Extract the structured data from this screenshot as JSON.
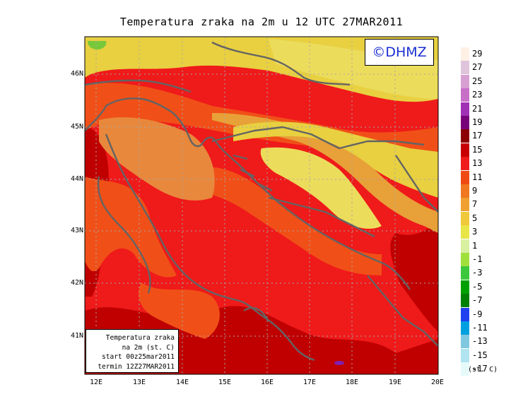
{
  "title": "Temperatura zraka na 2m u 12 UTC 27MAR2011",
  "brand": "©DHMZ",
  "infobox": {
    "line1": "Temperatura zraka",
    "line2": "na 2m (st. C)",
    "line3": "start 00z25mar2011",
    "line4": "termin 12Z27MAR2011"
  },
  "latitude_labels": [
    "46N",
    "45N",
    "44N",
    "43N",
    "42N",
    "41N"
  ],
  "longitude_labels": [
    "12E",
    "13E",
    "14E",
    "15E",
    "16E",
    "17E",
    "18E",
    "19E",
    "20E"
  ],
  "colorbar": {
    "units": "(st. C)",
    "labels": [
      "29",
      "27",
      "25",
      "23",
      "21",
      "19",
      "17",
      "15",
      "13",
      "11",
      "9",
      "7",
      "5",
      "3",
      "1",
      "-1",
      "-3",
      "-5",
      "-7",
      "-9",
      "-11",
      "-13",
      "-15",
      "-17"
    ],
    "colors": [
      "#fff0e6",
      "#e0c4dc",
      "#d8a0d2",
      "#c870c8",
      "#a030b4",
      "#780078",
      "#8c0000",
      "#c80000",
      "#f01c1c",
      "#f04a14",
      "#f07820",
      "#f0a030",
      "#f0c83c",
      "#e8e646",
      "#d8f0a0",
      "#a0e03c",
      "#3cc83c",
      "#00a000",
      "#008000",
      "#2040f0",
      "#00a0e0",
      "#80c8e0",
      "#b0e4f0",
      "#e6fafa"
    ]
  },
  "map_colors": {
    "sea_main": "#ef1a1a",
    "deep_red": "#c00000",
    "orange": "#f05018",
    "light_orange": "#e8883c",
    "yellow_orange": "#e8a038",
    "yellow": "#e8d040",
    "pale_yellow": "#ecdc5c",
    "green": "#78c83c",
    "purple": "#8020b0",
    "coast": "#646464",
    "grid": "#a8a8a8"
  }
}
